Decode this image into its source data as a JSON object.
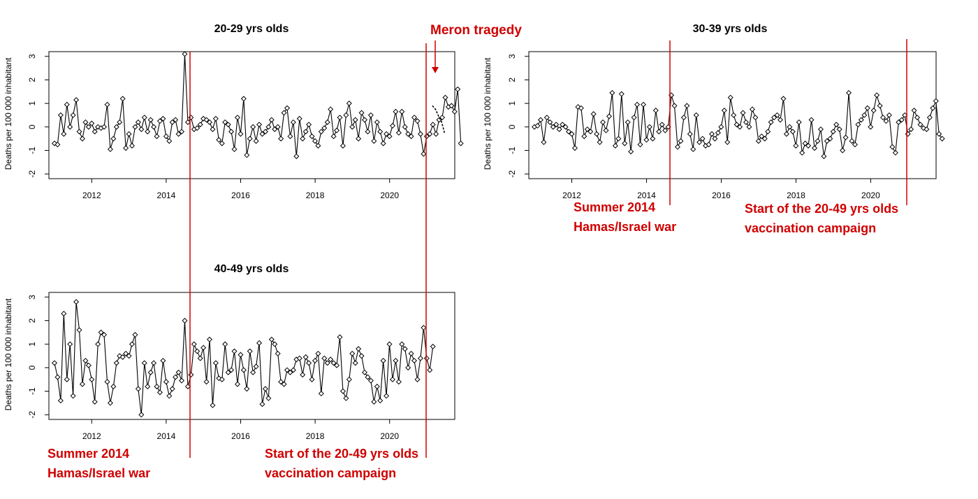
{
  "chart_data": [
    {
      "type": "line",
      "title": "20-29 yrs olds",
      "ylabel": "Deaths per 100 000 inhabitant",
      "xlabel": "",
      "x_ticks": [
        "2012",
        "2014",
        "2016",
        "2018",
        "2020"
      ],
      "y_ticks": [
        "-2",
        "-1",
        "0",
        "1",
        "2",
        "3"
      ],
      "xlim": [
        2010.85,
        2021.75
      ],
      "ylim": [
        -2.2,
        3.2
      ],
      "grid": false,
      "x_start": 2011.0,
      "x_step": 0.0833,
      "values": [
        -0.7,
        -0.75,
        0.5,
        -0.3,
        0.95,
        0.0,
        0.5,
        1.15,
        -0.2,
        -0.5,
        0.2,
        0.0,
        0.15,
        -0.2,
        0.0,
        -0.05,
        0.0,
        0.95,
        -0.95,
        -0.5,
        0.0,
        0.2,
        1.2,
        -0.9,
        -0.3,
        -0.8,
        0.0,
        0.2,
        -0.1,
        0.4,
        -0.2,
        0.3,
        0.0,
        -0.4,
        0.25,
        0.35,
        -0.4,
        -0.6,
        0.2,
        0.3,
        -0.3,
        -0.2,
        3.1,
        0.2,
        0.4,
        -0.1,
        -0.05,
        0.1,
        0.35,
        0.3,
        0.2,
        -0.1,
        0.35,
        -0.55,
        -0.7,
        0.2,
        0.1,
        -0.2,
        -0.95,
        0.4,
        -0.3,
        1.2,
        -1.2,
        -0.5,
        0.0,
        -0.6,
        0.1,
        -0.3,
        -0.2,
        0.0,
        0.3,
        -0.1,
        0.0,
        -0.5,
        0.6,
        0.8,
        -0.4,
        0.2,
        -1.25,
        0.35,
        -0.5,
        -0.2,
        0.1,
        -0.4,
        -0.6,
        -0.8,
        -0.2,
        -0.05,
        0.2,
        0.75,
        -0.4,
        -0.15,
        0.4,
        -0.8,
        0.5,
        1.0,
        0.0,
        0.3,
        -0.5,
        0.6,
        0.3,
        -0.2,
        0.5,
        -0.6,
        0.2,
        -0.2,
        -0.7,
        -0.3,
        -0.4,
        0.05,
        0.65,
        -0.25,
        0.65,
        0.0,
        -0.3,
        -0.4,
        0.4,
        0.25,
        -0.3,
        -1.15,
        -0.4,
        -0.3,
        0.1,
        -0.3,
        0.3,
        0.4,
        1.25,
        0.85,
        0.9,
        0.65,
        1.6,
        -0.7
      ],
      "lines": [
        {
          "type": "line",
          "x_start": 2021.15,
          "x_step": 0.083,
          "values": [
            0.9,
            0.75,
            0.45,
            0.2,
            -0.3
          ]
        }
      ],
      "annotation": "Meron tragedy"
    },
    {
      "type": "line",
      "title": "30-39 yrs olds",
      "ylabel": "Deaths per 100 000 inhabitant",
      "xlabel": "",
      "x_ticks": [
        "2012",
        "2014",
        "2016",
        "2018",
        "2020"
      ],
      "y_ticks": [
        "-2",
        "-1",
        "0",
        "1",
        "2",
        "3"
      ],
      "xlim": [
        2010.85,
        2021.75
      ],
      "ylim": [
        -2.2,
        3.2
      ],
      "grid": false,
      "x_start": 2011.0,
      "x_step": 0.0833,
      "values": [
        0.0,
        0.05,
        0.3,
        -0.65,
        0.4,
        0.2,
        0.0,
        0.1,
        -0.1,
        0.1,
        0.0,
        -0.2,
        -0.3,
        -0.9,
        0.85,
        0.8,
        -0.4,
        -0.1,
        -0.2,
        0.55,
        -0.3,
        -0.65,
        0.2,
        -0.15,
        0.45,
        1.45,
        -0.8,
        -0.5,
        1.4,
        -0.7,
        0.2,
        -1.05,
        0.4,
        0.95,
        -0.75,
        0.95,
        -0.55,
        0.0,
        -0.5,
        0.7,
        -0.2,
        0.1,
        -0.15,
        0.0,
        1.35,
        0.9,
        -0.85,
        -0.6,
        0.4,
        0.9,
        -0.3,
        -0.95,
        0.5,
        -0.65,
        -0.5,
        -0.8,
        -0.75,
        -0.3,
        -0.5,
        -0.25,
        0.0,
        0.7,
        -0.65,
        1.25,
        0.5,
        0.1,
        0.0,
        0.6,
        0.2,
        0.0,
        0.75,
        0.4,
        -0.6,
        -0.4,
        -0.5,
        -0.2,
        0.2,
        0.4,
        0.5,
        0.3,
        1.2,
        -0.3,
        0.0,
        -0.2,
        -0.8,
        0.2,
        -1.1,
        -0.7,
        -0.8,
        0.3,
        -0.9,
        -0.6,
        -0.1,
        -1.25,
        -0.6,
        -0.5,
        -0.2,
        0.1,
        -0.1,
        -1.0,
        -0.45,
        1.45,
        -0.6,
        -0.75,
        0.1,
        0.3,
        0.5,
        0.8,
        0.0,
        0.7,
        1.35,
        0.9,
        0.4,
        0.25,
        0.5,
        -0.85,
        -1.1,
        0.2,
        0.3,
        0.5,
        -0.3,
        -0.1,
        0.7,
        0.4,
        0.1,
        -0.05,
        -0.1,
        0.4,
        0.8,
        1.1,
        -0.3,
        -0.5
      ]
    },
    {
      "type": "line",
      "title": "40-49 yrs olds",
      "ylabel": "Deaths per 100 000 inhabitant",
      "xlabel": "",
      "x_ticks": [
        "2012",
        "2014",
        "2016",
        "2018",
        "2020"
      ],
      "y_ticks": [
        "-2",
        "-1",
        "0",
        "1",
        "2",
        "3"
      ],
      "xlim": [
        2010.85,
        2021.75
      ],
      "ylim": [
        -2.2,
        3.2
      ],
      "grid": false,
      "x_start": 2011.0,
      "x_step": 0.0833,
      "values": [
        0.2,
        -0.4,
        -1.4,
        2.3,
        -0.5,
        1.0,
        -1.2,
        2.8,
        1.6,
        -0.7,
        0.3,
        0.1,
        -0.5,
        -1.45,
        1.0,
        1.5,
        1.4,
        -0.6,
        -1.5,
        -0.8,
        0.2,
        0.5,
        0.45,
        0.6,
        0.5,
        1.0,
        1.4,
        -0.9,
        -2.0,
        0.2,
        -0.8,
        -0.2,
        0.2,
        -0.8,
        -1.05,
        0.3,
        -0.6,
        -1.2,
        -0.9,
        -0.4,
        -0.2,
        -0.55,
        2.0,
        -0.8,
        -0.3,
        1.0,
        0.7,
        0.4,
        0.85,
        -0.6,
        1.2,
        -1.6,
        0.2,
        -0.45,
        -0.5,
        1.0,
        -0.2,
        -0.1,
        0.7,
        -0.7,
        0.55,
        -0.1,
        -0.9,
        0.7,
        -0.2,
        0.05,
        1.05,
        -1.55,
        -0.9,
        -1.3,
        1.2,
        1.0,
        0.6,
        -0.6,
        -0.7,
        -0.1,
        -0.2,
        -0.1,
        0.35,
        0.4,
        -0.3,
        0.45,
        0.2,
        -0.5,
        0.3,
        0.6,
        -1.1,
        0.4,
        0.2,
        0.35,
        0.2,
        0.1,
        1.3,
        -1.0,
        -1.3,
        -0.5,
        0.6,
        0.2,
        0.8,
        0.5,
        -0.2,
        -0.4,
        -0.55,
        -1.45,
        -0.8,
        -1.4,
        0.3,
        -1.2,
        1.0,
        -0.5,
        0.3,
        -0.6,
        1.0,
        0.8,
        0.0,
        0.6,
        0.3,
        -0.5,
        0.4,
        1.7,
        0.4,
        -0.1,
        0.9
      ]
    }
  ],
  "annotations": {
    "meron": "Meron tragedy",
    "war_line1": "Summer 2014",
    "war_line2": "Hamas/Israel war",
    "vacc_line1": "Start of the 20-49 yrs olds",
    "vacc_line2": "vaccination campaign"
  },
  "colors": {
    "annotation": "#d00000",
    "series": "#000000",
    "frame": "#000000"
  }
}
